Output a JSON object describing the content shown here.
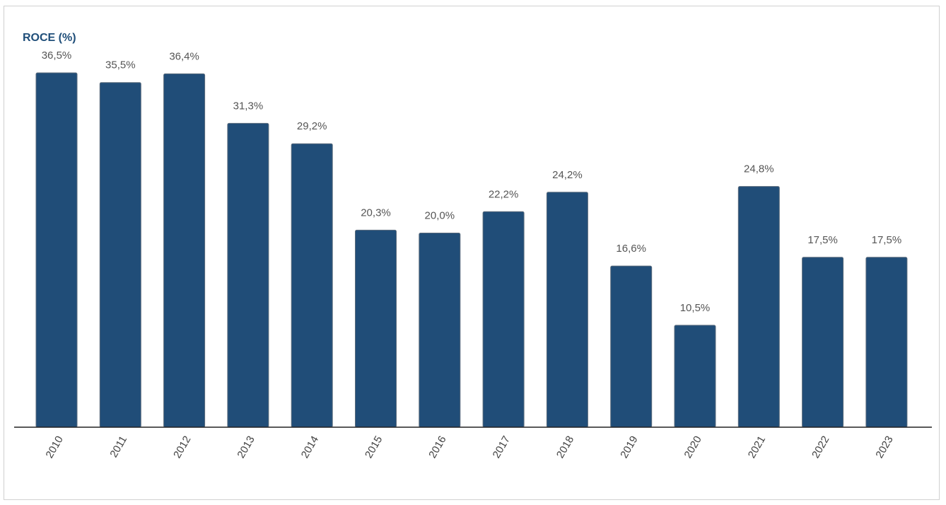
{
  "chart_data": {
    "type": "bar",
    "title": "ROCE (%)",
    "xlabel": "",
    "ylabel": "",
    "categories": [
      "2010",
      "2011",
      "2012",
      "2013",
      "2014",
      "2015",
      "2016",
      "2017",
      "2018",
      "2019",
      "2020",
      "2021",
      "2022",
      "2023"
    ],
    "values": [
      36.5,
      35.5,
      36.4,
      31.3,
      29.2,
      20.3,
      20.0,
      22.2,
      24.2,
      16.6,
      10.5,
      24.8,
      17.5,
      17.5
    ],
    "data_labels": [
      "36,5%",
      "35,5%",
      "36,4%",
      "31,3%",
      "29,2%",
      "20,3%",
      "20,0%",
      "22,2%",
      "24,2%",
      "16,6%",
      "10,5%",
      "24,8%",
      "17,5%",
      "17,5%"
    ],
    "ylim": [
      0,
      36.5
    ],
    "grid": false,
    "legend": "none",
    "bar_color": "#204d78",
    "axis_color": "#222222"
  }
}
